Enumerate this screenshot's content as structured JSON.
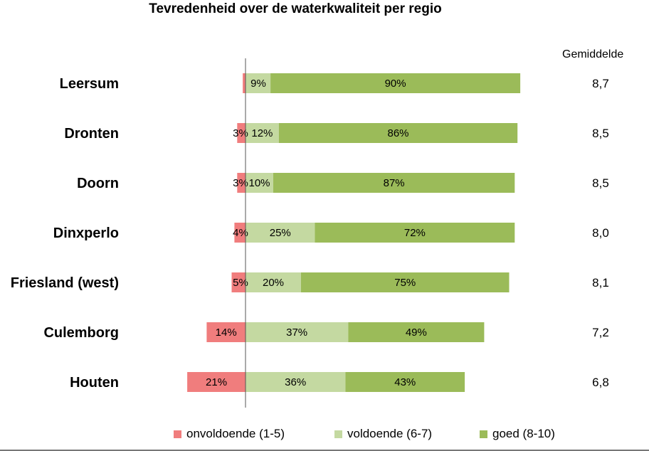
{
  "chart_data": {
    "type": "bar",
    "orientation": "horizontal-stacked",
    "title": "Tevredenheid over de waterkwaliteit per regio",
    "average_header": "Gemiddelde",
    "categories": [
      "Leersum",
      "Dronten",
      "Doorn",
      "Dinxperlo",
      "Friesland (west)",
      "Culemborg",
      "Houten"
    ],
    "series": [
      {
        "name": "onvoldoende (1-5)",
        "color": "#f07d7d",
        "values": [
          1,
          3,
          3,
          4,
          5,
          14,
          21
        ],
        "labels": [
          "",
          "3%",
          "3%",
          "4%",
          "5%",
          "14%",
          "21%"
        ]
      },
      {
        "name": "voldoende (6-7)",
        "color": "#c4d9a1",
        "values": [
          9,
          12,
          10,
          25,
          20,
          37,
          36
        ],
        "labels": [
          "9%",
          "12%",
          "10%",
          "25%",
          "20%",
          "37%",
          "36%"
        ]
      },
      {
        "name": "goed (8-10)",
        "color": "#9bbb59",
        "values": [
          90,
          86,
          87,
          72,
          75,
          49,
          43
        ],
        "labels": [
          "90%",
          "86%",
          "87%",
          "72%",
          "75%",
          "49%",
          "43%"
        ]
      }
    ],
    "averages": [
      "8,7",
      "8,5",
      "8,5",
      "8,0",
      "8,1",
      "7,2",
      "6,8"
    ],
    "legend_position": "bottom",
    "grid": false
  }
}
